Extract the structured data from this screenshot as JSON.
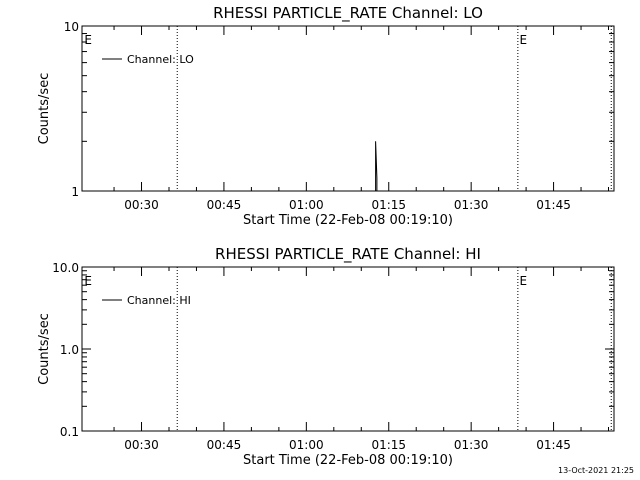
{
  "colors": {
    "background": "#ffffff",
    "foreground": "#000000"
  },
  "footer": {
    "timestamp": "13-Oct-2021 21:25"
  },
  "chart_data": [
    {
      "type": "line",
      "title": "RHESSI PARTICLE_RATE Channel: LO",
      "xlabel": "Start Time (22-Feb-08 00:19:10)",
      "ylabel": "Counts/sec",
      "y_scale": "log",
      "ylim": [
        1,
        10
      ],
      "y_ticks": [
        {
          "label": "1",
          "value": 1
        },
        {
          "label": "10",
          "value": 10
        }
      ],
      "xlim_minutes": [
        19.1667,
        116.0
      ],
      "x_ticks": [
        {
          "label": "00:30",
          "minutes": 30
        },
        {
          "label": "00:45",
          "minutes": 45
        },
        {
          "label": "01:00",
          "minutes": 60
        },
        {
          "label": "01:15",
          "minutes": 75
        },
        {
          "label": "01:30",
          "minutes": 90
        },
        {
          "label": "01:45",
          "minutes": 105
        }
      ],
      "eclipse_lines_minutes": [
        36.5,
        98.5,
        115.5
      ],
      "eclipse_markers": [
        {
          "label": "E",
          "minutes": 19.6
        },
        {
          "label": "E",
          "minutes": 98.8
        }
      ],
      "legend": {
        "position": "top-left",
        "entries": [
          "Channel: LO"
        ]
      },
      "series": [
        {
          "name": "Channel: LO",
          "points": [
            {
              "minutes": 72.6,
              "value": 0.9
            },
            {
              "minutes": 72.6,
              "value": 2.0
            },
            {
              "minutes": 72.85,
              "value": 1.2
            },
            {
              "minutes": 72.85,
              "value": 0.9
            }
          ]
        }
      ]
    },
    {
      "type": "line",
      "title": "RHESSI PARTICLE_RATE Channel: HI",
      "xlabel": "Start Time (22-Feb-08 00:19:10)",
      "ylabel": "Counts/sec",
      "y_scale": "log",
      "ylim": [
        0.1,
        10
      ],
      "y_ticks": [
        {
          "label": "0.1",
          "value": 0.1
        },
        {
          "label": "1.0",
          "value": 1.0
        },
        {
          "label": "10.0",
          "value": 10.0
        }
      ],
      "xlim_minutes": [
        19.1667,
        116.0
      ],
      "x_ticks": [
        {
          "label": "00:30",
          "minutes": 30
        },
        {
          "label": "00:45",
          "minutes": 45
        },
        {
          "label": "01:00",
          "minutes": 60
        },
        {
          "label": "01:15",
          "minutes": 75
        },
        {
          "label": "01:30",
          "minutes": 90
        },
        {
          "label": "01:45",
          "minutes": 105
        }
      ],
      "eclipse_lines_minutes": [
        36.5,
        98.5,
        115.5
      ],
      "eclipse_markers": [
        {
          "label": "E",
          "minutes": 19.6
        },
        {
          "label": "E",
          "minutes": 98.8
        }
      ],
      "legend": {
        "position": "top-left",
        "entries": [
          "Channel: HI"
        ]
      },
      "series": [
        {
          "name": "Channel: HI",
          "points": []
        }
      ]
    }
  ]
}
